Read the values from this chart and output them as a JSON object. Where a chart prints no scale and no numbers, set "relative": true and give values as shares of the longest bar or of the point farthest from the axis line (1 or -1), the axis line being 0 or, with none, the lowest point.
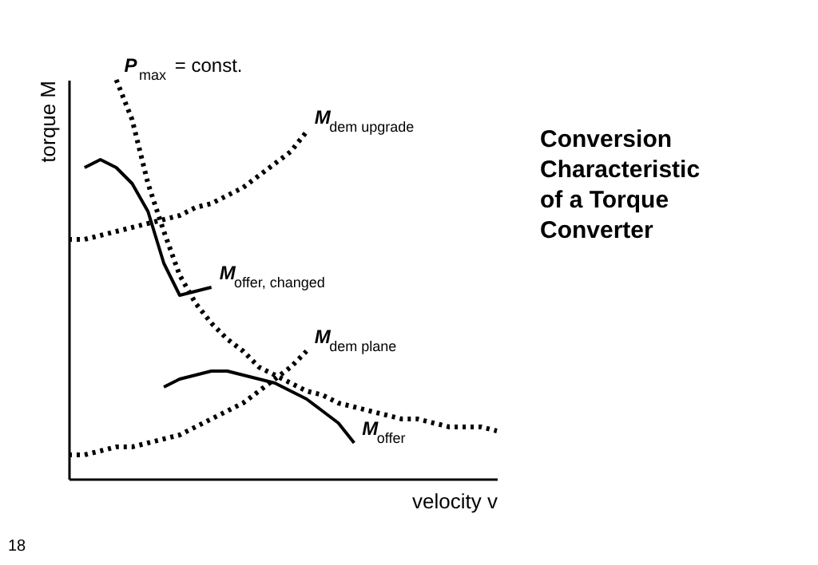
{
  "chart_data": {
    "type": "line",
    "title": "Conversion Characteristic of a Torque Converter",
    "xlabel": "velocity v",
    "ylabel": "torque M",
    "relative": true,
    "legend": false,
    "grid": false,
    "marker": "none",
    "categories": [
      null,
      null,
      null,
      null,
      null,
      null,
      null,
      null,
      null,
      null,
      null,
      null,
      null,
      null,
      null,
      null,
      null,
      null,
      null,
      null,
      null,
      null,
      null,
      null,
      null,
      null,
      null,
      null
    ],
    "series": [
      {
        "name": "P$_{max}$ = const.",
        "color": "#000000",
        "line_style": "dotted",
        "values": [
          null,
          null,
          null,
          1.0,
          0.9,
          0.74,
          0.62,
          0.51,
          0.44,
          0.39,
          0.35,
          0.32,
          0.28,
          0.26,
          0.24,
          0.22,
          0.21,
          0.19,
          0.18,
          0.17,
          0.16,
          0.15,
          0.15,
          0.14,
          0.13,
          0.13,
          0.13,
          0.12
        ]
      },
      {
        "name": "M$_{dem upgrade}$",
        "color": "#000000",
        "line_style": "dotted",
        "values": [
          0.6,
          0.6,
          0.61,
          0.62,
          0.63,
          0.64,
          0.65,
          0.66,
          0.68,
          0.69,
          0.71,
          0.73,
          0.76,
          0.79,
          0.82,
          0.87,
          null,
          null,
          null,
          null,
          null,
          null,
          null,
          null,
          null,
          null,
          null,
          null
        ]
      },
      {
        "name": "M$_{offer, changed}$",
        "color": "#000000",
        "line_style": "solid",
        "values": [
          null,
          0.78,
          0.8,
          0.78,
          0.74,
          0.67,
          0.54,
          0.46,
          0.47,
          0.48,
          null,
          null,
          null,
          null,
          null,
          null,
          null,
          null,
          null,
          null,
          null,
          null,
          null,
          null,
          null,
          null,
          null,
          null
        ]
      },
      {
        "name": "M$_{dem plane}$",
        "color": "#000000",
        "line_style": "dotted",
        "values": [
          0.06,
          0.06,
          0.07,
          0.08,
          0.08,
          0.09,
          0.1,
          0.11,
          0.13,
          0.15,
          0.17,
          0.19,
          0.22,
          0.25,
          0.28,
          0.32,
          null,
          null,
          null,
          null,
          null,
          null,
          null,
          null,
          null,
          null,
          null,
          null
        ]
      },
      {
        "name": "M$_{offer}$",
        "color": "#000000",
        "line_style": "solid",
        "values": [
          null,
          null,
          null,
          null,
          null,
          null,
          0.23,
          0.25,
          0.26,
          0.27,
          0.27,
          0.26,
          0.25,
          0.24,
          0.22,
          0.2,
          0.17,
          0.14,
          0.09,
          null,
          null,
          null,
          null,
          null,
          null,
          null,
          null,
          null
        ]
      }
    ],
    "annotations": [
      "18"
    ]
  }
}
